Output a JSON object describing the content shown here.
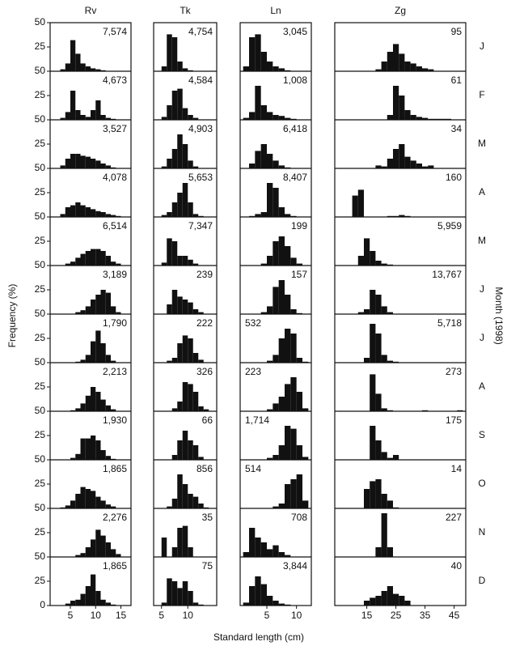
{
  "chart_data": {
    "type": "histogram",
    "y_label": "Frequency (%)",
    "x_label": "Standard length (cm)",
    "right_label": "Month (1998)",
    "months": [
      "J",
      "F",
      "M",
      "A",
      "M",
      "J",
      "J",
      "A",
      "S",
      "O",
      "N",
      "D"
    ],
    "ylim": [
      0,
      50
    ],
    "yticks": [
      0,
      25,
      50
    ],
    "color": "#111111",
    "panels": [
      {
        "name": "Rv",
        "xlim": [
          1,
          17
        ],
        "xticks": [
          5,
          10,
          15
        ],
        "bins": [
          2,
          3,
          4,
          5,
          6,
          7,
          8,
          9,
          10,
          11,
          12,
          13,
          14,
          15,
          16
        ],
        "counts": [
          [
            0,
            2,
            8,
            32,
            18,
            8,
            5,
            3,
            2,
            1,
            0,
            0,
            0,
            0
          ],
          [
            0,
            2,
            8,
            30,
            10,
            5,
            3,
            10,
            20,
            5,
            2,
            1,
            0,
            0
          ],
          [
            0,
            3,
            10,
            15,
            15,
            13,
            12,
            10,
            8,
            5,
            3,
            1,
            0,
            0
          ],
          [
            0,
            3,
            10,
            12,
            15,
            12,
            10,
            8,
            6,
            5,
            3,
            2,
            1,
            0
          ],
          [
            0,
            0,
            2,
            4,
            8,
            12,
            15,
            17,
            17,
            15,
            10,
            4,
            2,
            0
          ],
          [
            0,
            0,
            0,
            0,
            2,
            4,
            8,
            15,
            20,
            25,
            22,
            8,
            2,
            0
          ],
          [
            0,
            0,
            0,
            0,
            1,
            3,
            8,
            22,
            33,
            20,
            8,
            2,
            0,
            0
          ],
          [
            0,
            0,
            0,
            1,
            3,
            8,
            16,
            25,
            20,
            12,
            6,
            2,
            0,
            0
          ],
          [
            0,
            0,
            0,
            2,
            6,
            22,
            22,
            25,
            20,
            10,
            4,
            1,
            0,
            0
          ],
          [
            0,
            1,
            3,
            8,
            15,
            22,
            20,
            18,
            12,
            8,
            4,
            2,
            0,
            0
          ],
          [
            0,
            0,
            0,
            0,
            2,
            4,
            10,
            18,
            28,
            22,
            15,
            8,
            3,
            0
          ],
          [
            0,
            0,
            2,
            5,
            6,
            12,
            20,
            32,
            15,
            6,
            3,
            1,
            0,
            0
          ]
        ],
        "n_labels": [
          "7,574",
          "4,673",
          "3,527",
          "4,078",
          "6,514",
          "3,189",
          "1,790",
          "2,213",
          "1,930",
          "1,865",
          "2,276",
          "1,865"
        ]
      },
      {
        "name": "Tk",
        "xlim": [
          3.5,
          15.5
        ],
        "xticks": [
          5,
          10
        ],
        "bins": [
          4,
          5,
          6,
          7,
          8,
          9,
          10,
          11,
          12,
          13,
          14,
          15
        ],
        "counts": [
          [
            0,
            5,
            38,
            35,
            10,
            3,
            1,
            0,
            0,
            0,
            0
          ],
          [
            0,
            3,
            15,
            30,
            32,
            12,
            5,
            2,
            0,
            0,
            0
          ],
          [
            0,
            2,
            10,
            20,
            35,
            25,
            8,
            2,
            0,
            0,
            0
          ],
          [
            0,
            2,
            5,
            15,
            25,
            35,
            15,
            3,
            1,
            0,
            0
          ],
          [
            0,
            3,
            28,
            25,
            10,
            10,
            6,
            2,
            0,
            0,
            0
          ],
          [
            0,
            0,
            10,
            25,
            18,
            15,
            12,
            5,
            2,
            0,
            0
          ],
          [
            0,
            0,
            2,
            5,
            20,
            28,
            25,
            10,
            3,
            0,
            0
          ],
          [
            0,
            0,
            0,
            3,
            10,
            30,
            28,
            20,
            5,
            2,
            0
          ],
          [
            0,
            0,
            0,
            5,
            20,
            30,
            20,
            15,
            3,
            0,
            0
          ],
          [
            0,
            0,
            2,
            10,
            35,
            25,
            15,
            12,
            5,
            1,
            0
          ],
          [
            0,
            20,
            0,
            10,
            30,
            32,
            10,
            0,
            0,
            0,
            0
          ],
          [
            0,
            3,
            28,
            25,
            18,
            25,
            15,
            3,
            1,
            0,
            0
          ]
        ],
        "n_labels": [
          "4,754",
          "4,584",
          "4,903",
          "5,653",
          "7,347",
          "239",
          "222",
          "326",
          "66",
          "856",
          "35",
          "75"
        ]
      },
      {
        "name": "Ln",
        "xlim": [
          0.5,
          12.5
        ],
        "xticks": [
          5,
          10
        ],
        "bins": [
          1,
          2,
          3,
          4,
          5,
          6,
          7,
          8,
          9,
          10,
          11,
          12
        ],
        "counts": [
          [
            5,
            35,
            38,
            20,
            10,
            5,
            3,
            1,
            0,
            0,
            0
          ],
          [
            2,
            8,
            35,
            15,
            8,
            5,
            4,
            2,
            1,
            0,
            0
          ],
          [
            0,
            5,
            18,
            25,
            15,
            8,
            3,
            1,
            0,
            0,
            0
          ],
          [
            0,
            1,
            3,
            5,
            35,
            30,
            10,
            3,
            1,
            0,
            0
          ],
          [
            0,
            0,
            0,
            2,
            10,
            25,
            30,
            20,
            8,
            2,
            0
          ],
          [
            0,
            0,
            0,
            2,
            8,
            28,
            35,
            20,
            5,
            1,
            0
          ],
          [
            0,
            0,
            0,
            0,
            2,
            8,
            25,
            35,
            30,
            5,
            1
          ],
          [
            0,
            0,
            0,
            0,
            2,
            8,
            15,
            28,
            35,
            20,
            3
          ],
          [
            0,
            0,
            0,
            0,
            2,
            5,
            15,
            35,
            32,
            15,
            3
          ],
          [
            0,
            0,
            0,
            0,
            0,
            2,
            5,
            25,
            30,
            35,
            8
          ],
          [
            5,
            30,
            20,
            15,
            8,
            12,
            5,
            2,
            0,
            0,
            0
          ],
          [
            3,
            20,
            30,
            22,
            10,
            5,
            2,
            1,
            0,
            0,
            0
          ]
        ],
        "n_labels": [
          "3,045",
          "1,008",
          "6,418",
          "8,407",
          "199",
          "157",
          "532",
          "223",
          "1,714",
          "514",
          "708",
          "3,844"
        ]
      },
      {
        "name": "Zg",
        "xlim": [
          4,
          49
        ],
        "xticks": [
          15,
          25,
          35,
          45
        ],
        "bins": [
          8,
          10,
          12,
          14,
          16,
          18,
          20,
          22,
          24,
          26,
          28,
          30,
          32,
          34,
          36,
          38,
          40,
          42,
          44,
          46,
          48
        ],
        "counts": [
          [
            0,
            0,
            0,
            0,
            0,
            2,
            10,
            20,
            28,
            18,
            10,
            8,
            5,
            3,
            2,
            0,
            0,
            0,
            0,
            0
          ],
          [
            0,
            0,
            0,
            0,
            0,
            0,
            0,
            5,
            35,
            25,
            10,
            5,
            3,
            2,
            1,
            1,
            1,
            1,
            0,
            0
          ],
          [
            0,
            0,
            0,
            0,
            0,
            3,
            2,
            10,
            20,
            25,
            12,
            8,
            5,
            2,
            3,
            0,
            0,
            0,
            0,
            0
          ],
          [
            0,
            22,
            28,
            0,
            0,
            0,
            0,
            1,
            1,
            2,
            1,
            0,
            0,
            0,
            0,
            0,
            0,
            0,
            0,
            0
          ],
          [
            0,
            0,
            10,
            28,
            15,
            5,
            2,
            1,
            0,
            0,
            0,
            0,
            0,
            0,
            0,
            0,
            0,
            0,
            0,
            0
          ],
          [
            0,
            0,
            2,
            5,
            25,
            20,
            8,
            2,
            0,
            0,
            0,
            0,
            0,
            0,
            0,
            0,
            0,
            0,
            0,
            0
          ],
          [
            0,
            0,
            0,
            5,
            40,
            30,
            8,
            2,
            1,
            0,
            0,
            0,
            0,
            0,
            0,
            0,
            0,
            0,
            0,
            0
          ],
          [
            0,
            0,
            0,
            0,
            38,
            18,
            3,
            1,
            0,
            0,
            0,
            0,
            0,
            1,
            0,
            0,
            0,
            0,
            0,
            1
          ],
          [
            0,
            0,
            0,
            0,
            35,
            20,
            8,
            2,
            5,
            0,
            0,
            0,
            0,
            0,
            0,
            0,
            0,
            0,
            0,
            0
          ],
          [
            0,
            0,
            0,
            20,
            28,
            30,
            15,
            8,
            1,
            0,
            0,
            0,
            0,
            0,
            0,
            0,
            0,
            0,
            0,
            0
          ],
          [
            0,
            0,
            0,
            0,
            0,
            10,
            45,
            10,
            0,
            0,
            0,
            0,
            0,
            0,
            0,
            0,
            0,
            0,
            0,
            0
          ],
          [
            0,
            0,
            0,
            5,
            8,
            10,
            15,
            20,
            12,
            10,
            5,
            0,
            0,
            0,
            0,
            0,
            0,
            0,
            0,
            0
          ]
        ],
        "n_labels": [
          "95",
          "61",
          "34",
          "160",
          "5,959",
          "13,767",
          "5,718",
          "273",
          "175",
          "14",
          "227",
          "40"
        ]
      }
    ]
  }
}
